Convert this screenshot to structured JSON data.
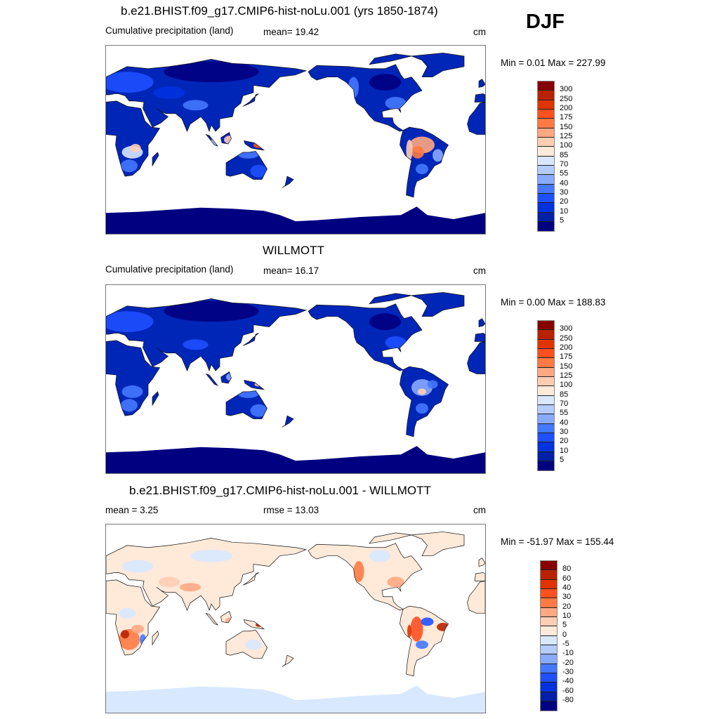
{
  "season": "DJF",
  "panels": [
    {
      "title": "b.e21.BHIST.f09_g17.CMIP6-hist-noLu.001 (yrs 1850-1874)",
      "left_label": "Cumulative precipitation (land)",
      "stat_label": "mean=  19.42",
      "units": "cm",
      "minmax": "Min =   0.01 Max = 227.99",
      "colorbar_labels": [
        "300",
        "250",
        "200",
        "175",
        "150",
        "125",
        "100",
        "85",
        "70",
        "55",
        "40",
        "30",
        "20",
        "10",
        "5"
      ]
    },
    {
      "title": "WILLMOTT",
      "left_label": "Cumulative precipitation (land)",
      "stat_label": "mean=  16.17",
      "units": "cm",
      "minmax": "Min =   0.00 Max = 188.83",
      "colorbar_labels": [
        "300",
        "250",
        "200",
        "175",
        "150",
        "125",
        "100",
        "85",
        "70",
        "55",
        "40",
        "30",
        "20",
        "10",
        "5"
      ]
    },
    {
      "title": "b.e21.BHIST.f09_g17.CMIP6-hist-noLu.001 - WILLMOTT",
      "left_label": "mean =   3.25",
      "stat_label": "rmse =  13.03",
      "units": "cm",
      "minmax": "Min = -51.97 Max = 155.44",
      "colorbar_labels": [
        "80",
        "60",
        "40",
        "30",
        "20",
        "10",
        "5",
        "0",
        "-5",
        "-10",
        "-20",
        "-30",
        "-40",
        "-60",
        "-80"
      ]
    }
  ],
  "colorbar_colors": [
    "#870000",
    "#b82200",
    "#e03400",
    "#ff5020",
    "#ff7a44",
    "#ffa882",
    "#ffcdb4",
    "#ffe9d9",
    "#d8e8ff",
    "#b4ccff",
    "#88aaff",
    "#4478ff",
    "#1e50ff",
    "#0032e0",
    "#0020a8",
    "#000080"
  ]
}
